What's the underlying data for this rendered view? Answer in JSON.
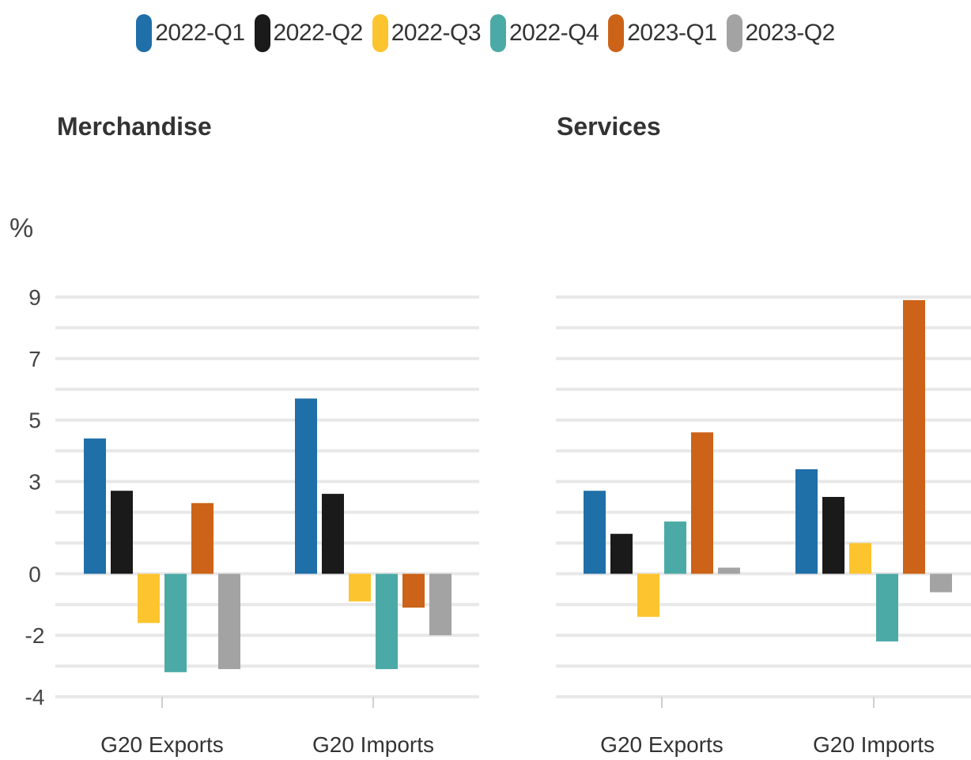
{
  "chart_data": {
    "type": "bar",
    "unit_label": "%",
    "ylim": [
      -4,
      9
    ],
    "yticks": [
      9,
      7,
      5,
      3,
      0,
      -2,
      -4
    ],
    "grid": true,
    "legend_position": "top-center",
    "series_colors": [
      "#1f6fa8",
      "#1a1a1a",
      "#fcc42e",
      "#4baaa6",
      "#cc6318",
      "#a3a3a3"
    ],
    "legend": [
      "2022-Q1",
      "2022-Q2",
      "2022-Q3",
      "2022-Q4",
      "2023-Q1",
      "2023-Q2"
    ],
    "panels": [
      {
        "title": "Merchandise",
        "categories": [
          "G20 Exports",
          "G20 Imports"
        ],
        "series": [
          {
            "name": "2022-Q1",
            "values": [
              4.4,
              5.7
            ]
          },
          {
            "name": "2022-Q2",
            "values": [
              2.7,
              2.6
            ]
          },
          {
            "name": "2022-Q3",
            "values": [
              -1.6,
              -0.9
            ]
          },
          {
            "name": "2022-Q4",
            "values": [
              -3.2,
              -3.1
            ]
          },
          {
            "name": "2023-Q1",
            "values": [
              2.3,
              -1.1
            ]
          },
          {
            "name": "2023-Q2",
            "values": [
              -3.1,
              -2.0
            ]
          }
        ]
      },
      {
        "title": "Services",
        "categories": [
          "G20 Exports",
          "G20 Imports"
        ],
        "series": [
          {
            "name": "2022-Q1",
            "values": [
              2.7,
              3.4
            ]
          },
          {
            "name": "2022-Q2",
            "values": [
              1.3,
              2.5
            ]
          },
          {
            "name": "2022-Q3",
            "values": [
              -1.4,
              1.0
            ]
          },
          {
            "name": "2022-Q4",
            "values": [
              1.7,
              -2.2
            ]
          },
          {
            "name": "2023-Q1",
            "values": [
              4.6,
              8.9
            ]
          },
          {
            "name": "2023-Q2",
            "values": [
              0.2,
              -0.6
            ]
          }
        ]
      }
    ]
  }
}
